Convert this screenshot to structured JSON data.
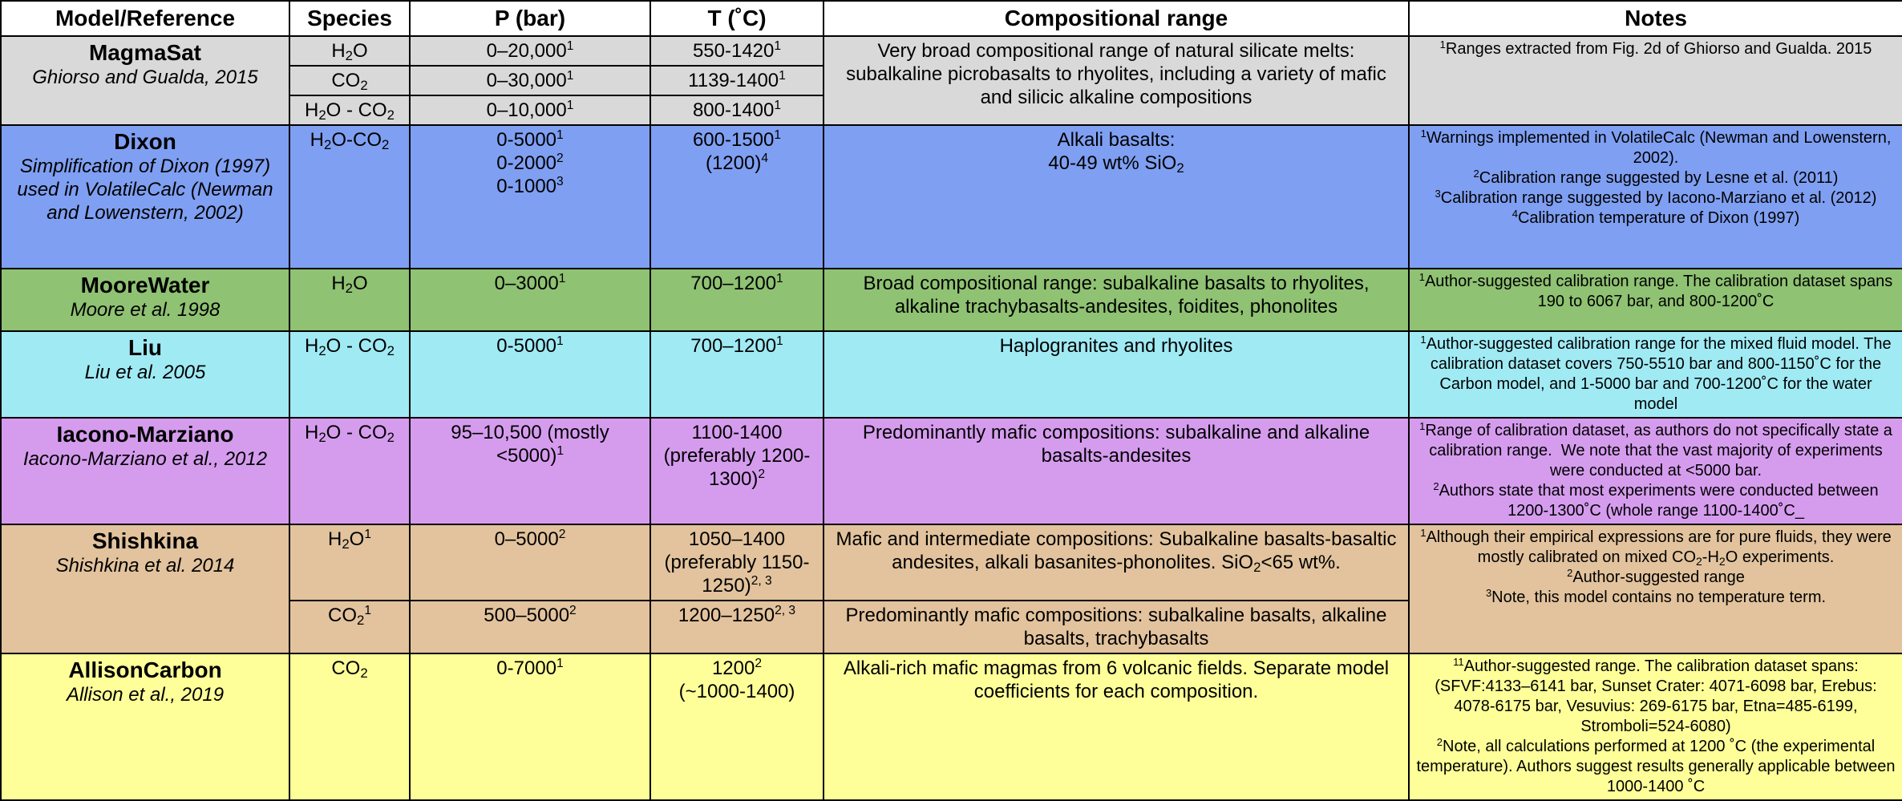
{
  "colors": {
    "magmasat": "#d9d9d9",
    "dixon": "#7f9ff2",
    "moorewater": "#8fc273",
    "liu": "#a0eaf4",
    "iacono": "#d59cee",
    "shishkina": "#e2c39d",
    "allison": "#ffff99"
  },
  "headers": [
    "Model/Reference",
    "Species",
    "P (bar)",
    "T (˚C)",
    "Compositional range",
    "Notes"
  ],
  "magmasat": {
    "name": "MagmaSat",
    "ref": "Ghiorso and Gualda, 2015",
    "rows": [
      {
        "species": "H<sub>2</sub>O",
        "p": "0–20,000<sup>1</sup>",
        "t": "550-1420<sup>1</sup>"
      },
      {
        "species": "CO<sub>2</sub>",
        "p": "0–30,000<sup>1</sup>",
        "t": "1139-1400<sup>1</sup>"
      },
      {
        "species": "H<sub>2</sub>O - CO<sub>2</sub>",
        "p": "0–10,000<sup>1</sup>",
        "t": "800-1400<sup>1</sup>"
      }
    ],
    "comp": "Very broad compositional range of natural silicate melts: subalkaline picrobasalts to rhyolites, including a variety of mafic and silicic alkaline compositions",
    "notes": "<sup>1</sup>Ranges extracted from Fig. 2d of Ghiorso and Gualda. 2015"
  },
  "dixon": {
    "name": "Dixon",
    "ref": "Simplification of Dixon (1997) used in VolatileCalc (Newman and Lowenstern, 2002)",
    "species": "H<sub>2</sub>O-CO<sub>2</sub>",
    "p": "0-5000<sup>1</sup><br>0-2000<sup>2</sup><br>0-1000<sup>3</sup>",
    "t": "600-1500<sup>1</sup><br>(1200)<sup>4</sup>",
    "comp": "Alkali basalts:<br>40-49 wt% SiO<sub>2</sub>",
    "notes": "<sup>1</sup>Warnings implemented in VolatileCalc (Newman and Lowenstern, 2002).<br><sup>2</sup>Calibration range suggested by Lesne et al. (2011)<br><sup>3</sup>Calibration range suggested by Iacono-Marziano et al. (2012)<br><sup>4</sup>Calibration temperature of Dixon (1997)"
  },
  "moorewater": {
    "name": "MooreWater",
    "ref": "Moore et al. 1998",
    "species": "H<sub>2</sub>O",
    "p": "0–3000<sup>1</sup>",
    "t": "700–1200<sup>1</sup>",
    "comp": "Broad compositional range: subalkaline basalts to rhyolites, alkaline trachybasalts-andesites, foidites, phonolites",
    "notes": "<sup>1</sup>Author-suggested calibration range. The calibration dataset spans 190 to 6067 bar, and 800-1200˚C"
  },
  "liu": {
    "name": "Liu",
    "ref": "Liu et al. 2005",
    "species": "H<sub>2</sub>O - CO<sub>2</sub>",
    "p": "0-5000<sup>1</sup>",
    "t": "700–1200<sup>1</sup>",
    "comp": "Haplogranites and rhyolites",
    "notes": "<sup>1</sup>Author-suggested calibration range for the mixed fluid model. The calibration dataset covers 750-5510 bar and 800-1150˚C for the Carbon model, and 1-5000 bar and 700-1200˚C for the water model"
  },
  "iacono": {
    "name": "Iacono-Marziano",
    "ref": "Iacono-Marziano et al., 2012",
    "species": "H<sub>2</sub>O - CO<sub>2</sub>",
    "p": "95–10,500 (mostly &lt;5000)<sup>1</sup>",
    "t": "1100-1400 (preferably 1200-1300)<sup>2</sup>",
    "comp": "Predominantly mafic compositions: subalkaline and alkaline basalts-andesites",
    "notes": "<sup>1</sup>Range of calibration dataset, as authors do not specifically state a calibration range.&nbsp; We note that the vast majority of experiments were conducted at &lt;5000 bar.<br><sup>2</sup>Authors state that most experiments were conducted between 1200-1300˚C (whole range 1100-1400˚C_"
  },
  "shishkina": {
    "name": "Shishkina",
    "ref": "Shishkina et al. 2014",
    "rows": [
      {
        "species": "H<sub>2</sub>O<sup>1</sup>",
        "p": "0–5000<sup>2</sup>",
        "t": "1050–1400 (preferably 1150-1250)<sup>2, 3</sup>",
        "comp": "Mafic and intermediate compositions: Subalkaline basalts-basaltic andesites, alkali basanites-phonolites. SiO<sub>2</sub>&lt;65 wt%."
      },
      {
        "species": "CO<sub>2</sub><sup>1</sup>",
        "p": "500–5000<sup>2</sup>",
        "t": "1200–1250<sup>2, 3</sup>",
        "comp": "Predominantly mafic compositions: subalkaline basalts, alkaline basalts, trachybasalts"
      }
    ],
    "notes": "<sup>1</sup>Although their empirical expressions are for pure fluids, they were mostly calibrated on mixed CO<sub>2</sub>-H<sub>2</sub>O experiments.<br><sup>2</sup>Author-suggested range<br><sup>3</sup>Note, this model contains no temperature term."
  },
  "allison": {
    "name": "AllisonCarbon",
    "ref": "Allison et al., 2019",
    "species": "CO<sub>2</sub>",
    "p": "0-7000<sup>1</sup>",
    "t": "1200<sup>2</sup><br>(~1000-1400)",
    "comp": "Alkali-rich mafic magmas from 6 volcanic fields. Separate model coefficients for each composition.",
    "notes": "<sup>11</sup>Author-suggested range. The calibration dataset spans: (SFVF:4133–6141 bar, Sunset Crater: 4071-6098 bar, Erebus: 4078-6175 bar, Vesuvius: 269-6175 bar, Etna=485-6199, Stromboli=524-6080)<br><sup>2</sup>Note, all calculations performed at 1200 ˚C (the experimental temperature). Authors suggest results generally applicable between 1000-1400 ˚C"
  }
}
